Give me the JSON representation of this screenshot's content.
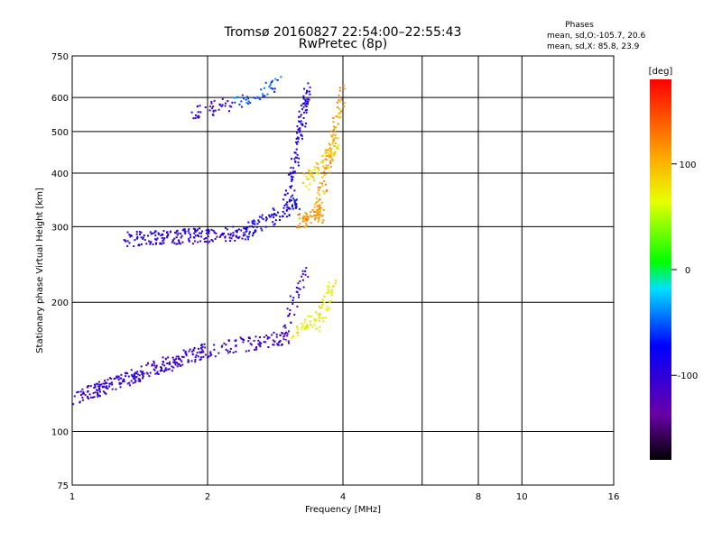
{
  "chart_data": {
    "type": "scatter",
    "title": "Tromsø 20160827 22:54:00–22:55:43",
    "subtitle": "RwPretec (8p)",
    "xlabel": "Frequency [MHz]",
    "ylabel": "Stationary phase Virtual Height [km]",
    "x_scale": "log",
    "y_scale": "log",
    "xlim": [
      1,
      16
    ],
    "ylim": [
      75,
      750
    ],
    "x_ticks": [
      1,
      2,
      4,
      8,
      10,
      16
    ],
    "y_ticks": [
      75,
      100,
      200,
      300,
      400,
      500,
      600,
      750
    ],
    "x_gridlines": [
      1,
      2,
      4,
      6,
      8,
      10
    ],
    "y_gridlines": [
      100,
      200,
      300,
      400,
      500,
      600,
      750
    ],
    "stats": {
      "header": "Phases",
      "line1": "mean, sd,O:-105.7, 20.6",
      "line2": "mean, sd,X:  85.8, 23.9"
    },
    "colorbar": {
      "label": "[deg]",
      "range": [
        -180,
        180
      ],
      "ticks": [
        100,
        0,
        -100
      ]
    },
    "traces": [
      {
        "x_min": 1.0,
        "x_max": 2.0,
        "y_start": 120,
        "y_end": 155,
        "phase": -110,
        "count": 260
      },
      {
        "x_min": 2.0,
        "x_max": 3.0,
        "y_start": 155,
        "y_end": 165,
        "phase": -115,
        "count": 90
      },
      {
        "x_min": 2.9,
        "x_max": 3.3,
        "y_start": 160,
        "y_end": 240,
        "phase": -115,
        "count": 40
      },
      {
        "x_min": 3.0,
        "x_max": 3.6,
        "y_start": 165,
        "y_end": 190,
        "phase": 70,
        "count": 40
      },
      {
        "x_min": 3.5,
        "x_max": 3.8,
        "y_start": 175,
        "y_end": 220,
        "phase": 70,
        "count": 45
      },
      {
        "x_min": 1.3,
        "x_max": 2.5,
        "y_start": 280,
        "y_end": 290,
        "phase": -105,
        "count": 200
      },
      {
        "x_min": 2.4,
        "x_max": 3.2,
        "y_start": 290,
        "y_end": 340,
        "phase": -90,
        "count": 90
      },
      {
        "x_min": 3.0,
        "x_max": 3.35,
        "y_start": 330,
        "y_end": 640,
        "phase": -100,
        "count": 110
      },
      {
        "x_min": 3.2,
        "x_max": 3.6,
        "y_start": 310,
        "y_end": 320,
        "phase": 115,
        "count": 60
      },
      {
        "x_min": 3.5,
        "x_max": 4.0,
        "y_start": 320,
        "y_end": 620,
        "phase": 110,
        "count": 110
      },
      {
        "x_min": 3.3,
        "x_max": 3.9,
        "y_start": 380,
        "y_end": 470,
        "phase": 85,
        "count": 60
      },
      {
        "x_min": 1.85,
        "x_max": 2.25,
        "y_start": 555,
        "y_end": 575,
        "phase": -110,
        "count": 40
      },
      {
        "x_min": 2.3,
        "x_max": 2.9,
        "y_start": 580,
        "y_end": 650,
        "phase": -60,
        "count": 40
      }
    ]
  }
}
